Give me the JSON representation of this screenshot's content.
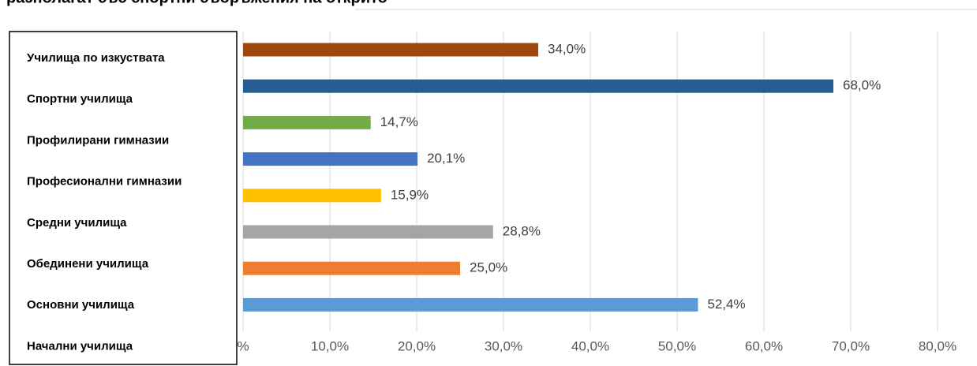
{
  "chart_data": {
    "type": "bar",
    "orientation": "horizontal",
    "title": "разполагат със спортни съоръжения на открито",
    "values": [
      34.0,
      68.0,
      14.7,
      20.1,
      15.9,
      28.8,
      25.0,
      52.4
    ],
    "value_labels": [
      "34,0%",
      "68,0%",
      "14,7%",
      "20,1%",
      "15,9%",
      "28,8%",
      "25,0%",
      "52,4%"
    ],
    "colors": [
      "#9e480e",
      "#255e91",
      "#70ad47",
      "#4472c4",
      "#ffc000",
      "#a5a5a5",
      "#ed7d31",
      "#5b9bd5"
    ],
    "label_box": [
      "Училища по изкуствата",
      "Спортни училища",
      "Профилирани гимназии",
      "Професионални гимназии",
      "Средни училища",
      "Обединени училища",
      "Основни училища",
      "Начални училища"
    ],
    "xlim": [
      0,
      80
    ],
    "xticks": [
      {
        "value": 0,
        "label": "%"
      },
      {
        "value": 10,
        "label": "10,0%"
      },
      {
        "value": 20,
        "label": "20,0%"
      },
      {
        "value": 30,
        "label": "30,0%"
      },
      {
        "value": 40,
        "label": "40,0%"
      },
      {
        "value": 50,
        "label": "50,0%"
      },
      {
        "value": 60,
        "label": "60,0%"
      },
      {
        "value": 70,
        "label": "70,0%"
      },
      {
        "value": 80,
        "label": "80,0%"
      }
    ],
    "grid": true
  }
}
